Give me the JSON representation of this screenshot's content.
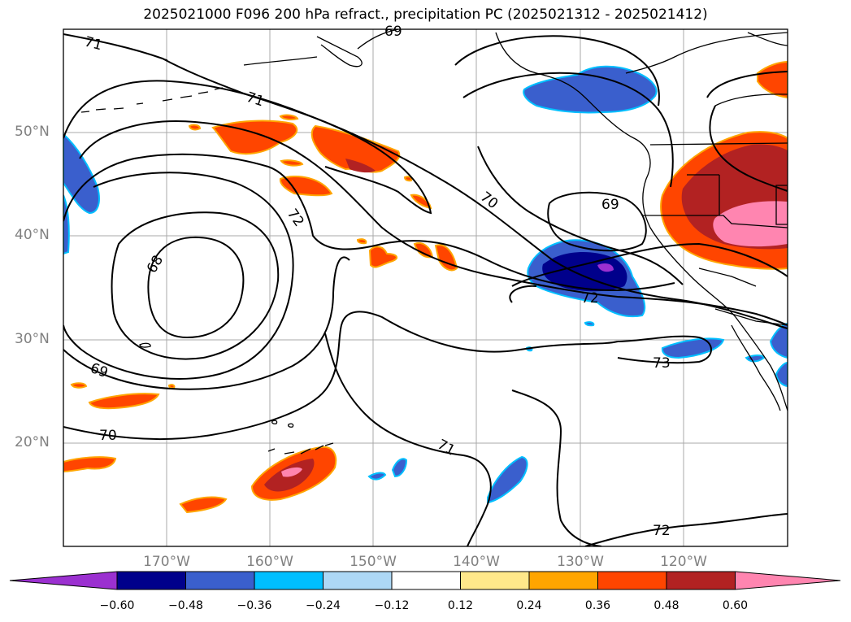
{
  "title": "2025021000 F096 200 hPa refract., precipitation PC (2025021312 - 2025021412)",
  "lat_labels": [
    "50°N",
    "40°N",
    "30°N",
    "20°N"
  ],
  "lon_labels": [
    "170°W",
    "160°W",
    "150°W",
    "140°W",
    "130°W",
    "120°W"
  ],
  "contour_labels": [
    "69",
    "71",
    "71",
    "72",
    "70",
    "69",
    "68",
    "72",
    "69",
    "73",
    "70",
    "71",
    "72"
  ],
  "colorbar": {
    "ticks": [
      "−0.60",
      "−0.48",
      "−0.36",
      "−0.24",
      "−0.12",
      "0.12",
      "0.24",
      "0.36",
      "0.48",
      "0.60"
    ],
    "colors": [
      "#9b30d0",
      "#00008b",
      "#3a5fcd",
      "#00bfff",
      "#add8f6",
      "#ffffff",
      "#ffe88a",
      "#ffa500",
      "#ff4500",
      "#b22222",
      "#ff85b0"
    ]
  },
  "colors": {
    "coast": "#000000",
    "grid": "#a9a9a9",
    "contour": "#000000"
  }
}
